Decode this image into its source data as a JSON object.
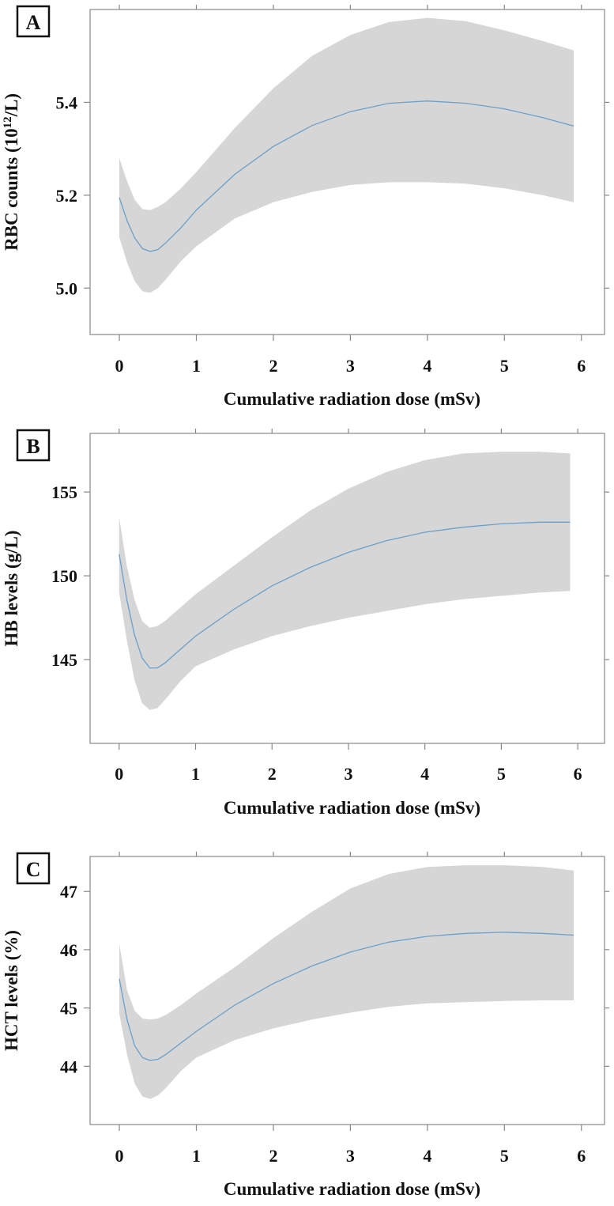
{
  "chart_data": [
    {
      "type": "line",
      "panel_label": "A",
      "xlabel": "Cumulative radiation dose (mSv)",
      "ylabel_main": "RBC counts (10",
      "ylabel_sup": "12",
      "ylabel_tail": "/L)",
      "xlim": [
        -0.38,
        6.3
      ],
      "ylim": [
        4.9,
        5.6
      ],
      "xticks": [
        0,
        1,
        2,
        3,
        4,
        5,
        6
      ],
      "yticks": [
        5.0,
        5.2,
        5.4
      ],
      "ytick_labels": [
        "5.0",
        "5.2",
        "5.4"
      ],
      "x": [
        0,
        0.1,
        0.2,
        0.3,
        0.4,
        0.5,
        0.6,
        0.8,
        1.0,
        1.5,
        2.0,
        2.5,
        3.0,
        3.5,
        4.0,
        4.5,
        5.0,
        5.5,
        5.9
      ],
      "series": [
        {
          "name": "fit",
          "values": [
            5.195,
            5.145,
            5.108,
            5.085,
            5.079,
            5.083,
            5.097,
            5.13,
            5.168,
            5.245,
            5.305,
            5.35,
            5.38,
            5.398,
            5.403,
            5.398,
            5.386,
            5.367,
            5.349
          ]
        },
        {
          "name": "lower",
          "values": [
            5.11,
            5.055,
            5.015,
            4.993,
            4.99,
            5.0,
            5.018,
            5.058,
            5.09,
            5.15,
            5.185,
            5.207,
            5.222,
            5.228,
            5.228,
            5.225,
            5.215,
            5.2,
            5.185
          ]
        },
        {
          "name": "upper",
          "values": [
            5.28,
            5.23,
            5.19,
            5.17,
            5.168,
            5.175,
            5.185,
            5.215,
            5.25,
            5.345,
            5.43,
            5.5,
            5.545,
            5.573,
            5.582,
            5.575,
            5.555,
            5.532,
            5.512
          ]
        }
      ]
    },
    {
      "type": "line",
      "panel_label": "B",
      "xlabel": "Cumulative radiation dose (mSv)",
      "ylabel_main": "HB levels (g/L)",
      "ylabel_sup": "",
      "ylabel_tail": "",
      "xlim": [
        -0.38,
        6.35
      ],
      "ylim": [
        140,
        158.5
      ],
      "xticks": [
        0,
        1,
        2,
        3,
        4,
        5,
        6
      ],
      "yticks": [
        145,
        150,
        155
      ],
      "ytick_labels": [
        "145",
        "150",
        "155"
      ],
      "x": [
        0,
        0.1,
        0.2,
        0.3,
        0.4,
        0.5,
        0.6,
        0.8,
        1.0,
        1.5,
        2.0,
        2.5,
        3.0,
        3.5,
        4.0,
        4.5,
        5.0,
        5.5,
        5.9
      ],
      "series": [
        {
          "name": "fit",
          "values": [
            151.3,
            148.6,
            146.5,
            145.1,
            144.5,
            144.5,
            144.8,
            145.6,
            146.4,
            148.0,
            149.4,
            150.5,
            151.4,
            152.1,
            152.6,
            152.9,
            153.1,
            153.2,
            153.2
          ]
        },
        {
          "name": "lower",
          "values": [
            149.0,
            146.2,
            143.8,
            142.4,
            142.0,
            142.1,
            142.6,
            143.7,
            144.6,
            145.6,
            146.4,
            147.0,
            147.5,
            147.9,
            148.3,
            148.6,
            148.8,
            149.0,
            149.1
          ]
        },
        {
          "name": "upper",
          "values": [
            153.5,
            150.6,
            148.6,
            147.3,
            146.9,
            147.0,
            147.3,
            148.1,
            148.9,
            150.6,
            152.3,
            153.9,
            155.2,
            156.2,
            156.9,
            157.3,
            157.4,
            157.4,
            157.3
          ]
        }
      ]
    },
    {
      "type": "line",
      "panel_label": "C",
      "xlabel": "Cumulative radiation dose (mSv)",
      "ylabel_main": "HCT levels (%)",
      "ylabel_sup": "",
      "ylabel_tail": "",
      "xlim": [
        -0.38,
        6.3
      ],
      "ylim": [
        43.0,
        47.6
      ],
      "xticks": [
        0,
        1,
        2,
        3,
        4,
        5,
        6
      ],
      "yticks": [
        44,
        45,
        46,
        47
      ],
      "ytick_labels": [
        "44",
        "45",
        "46",
        "47"
      ],
      "x": [
        0,
        0.1,
        0.2,
        0.3,
        0.4,
        0.5,
        0.6,
        0.8,
        1.0,
        1.5,
        2.0,
        2.5,
        3.0,
        3.5,
        4.0,
        4.5,
        5.0,
        5.5,
        5.9
      ],
      "series": [
        {
          "name": "fit",
          "values": [
            45.5,
            44.8,
            44.35,
            44.15,
            44.1,
            44.12,
            44.2,
            44.4,
            44.6,
            45.05,
            45.42,
            45.72,
            45.96,
            46.13,
            46.23,
            46.28,
            46.3,
            46.28,
            46.25
          ]
        },
        {
          "name": "lower",
          "values": [
            44.9,
            44.2,
            43.7,
            43.48,
            43.44,
            43.5,
            43.62,
            43.92,
            44.15,
            44.45,
            44.65,
            44.8,
            44.92,
            45.02,
            45.08,
            45.1,
            45.12,
            45.13,
            45.13
          ]
        },
        {
          "name": "upper",
          "values": [
            46.1,
            45.3,
            44.95,
            44.82,
            44.8,
            44.82,
            44.88,
            45.05,
            45.25,
            45.7,
            46.2,
            46.65,
            47.05,
            47.3,
            47.42,
            47.45,
            47.45,
            47.42,
            47.36
          ]
        }
      ]
    }
  ],
  "colors": {
    "band": "#d6d6d6",
    "line": "#6b9fc9",
    "axis": "#888888",
    "text": "#111111"
  }
}
